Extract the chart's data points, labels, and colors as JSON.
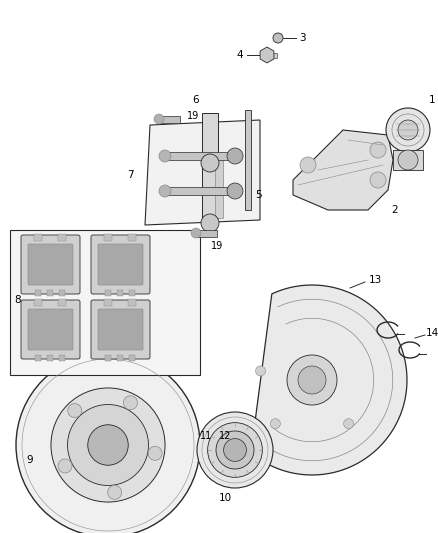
{
  "background_color": "#ffffff",
  "fig_width": 4.38,
  "fig_height": 5.33,
  "dpi": 100,
  "line_color": "#2a2a2a",
  "mid_gray": "#888888",
  "dark_gray": "#444444",
  "light_gray": "#cccccc",
  "label_fontsize": 7.5
}
